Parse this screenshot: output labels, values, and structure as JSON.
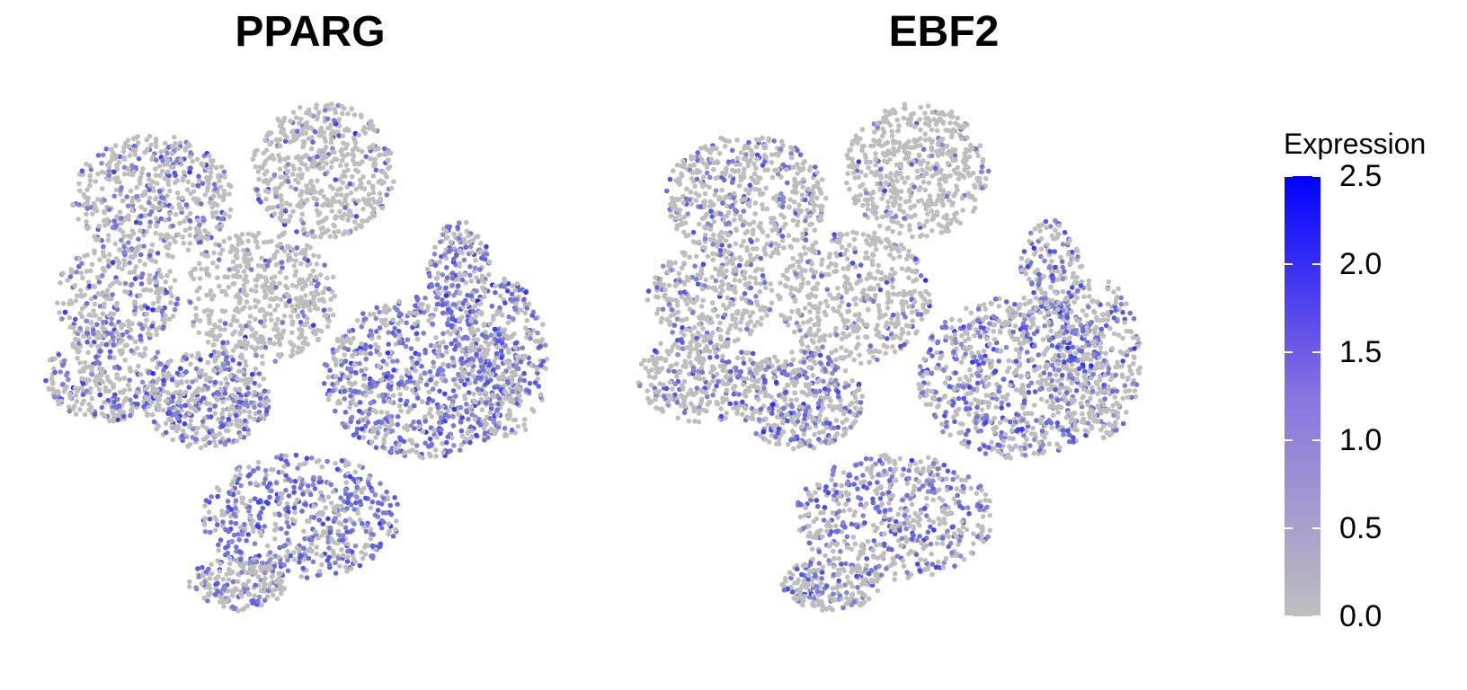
{
  "chart_data": {
    "type": "scatter",
    "panels": [
      {
        "title": "PPARG",
        "gene": "PPARG"
      },
      {
        "title": "EBF2",
        "gene": "EBF2"
      }
    ],
    "legend": {
      "title": "Expression",
      "ticks": [
        "0.0",
        "0.5",
        "1.0",
        "1.5",
        "2.0",
        "2.5"
      ],
      "range": [
        0,
        2.5
      ],
      "low_color": "#bebebe",
      "high_color": "#0000ff",
      "placement": "right"
    },
    "axes": "hidden",
    "grid": false
  }
}
